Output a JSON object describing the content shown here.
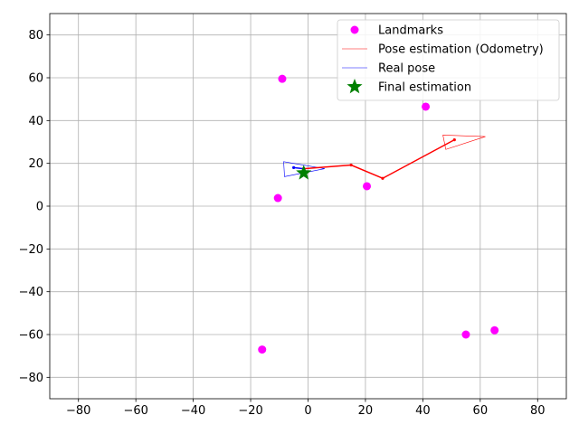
{
  "chart_data": {
    "type": "scatter",
    "xlim": [
      -90,
      90
    ],
    "ylim": [
      -90,
      90
    ],
    "xticks": [
      -80,
      -60,
      -40,
      -20,
      0,
      20,
      40,
      60,
      80
    ],
    "yticks": [
      -80,
      -60,
      -40,
      -20,
      0,
      20,
      40,
      60,
      80
    ],
    "grid": true,
    "legend_position": "top-right",
    "series": [
      {
        "name": "Landmarks",
        "kind": "scatter",
        "color": "#ff00ff",
        "points": [
          [
            -9,
            59.5
          ],
          [
            41,
            46.5
          ],
          [
            20.5,
            9.3
          ],
          [
            -10.5,
            3.8
          ],
          [
            -16,
            -67
          ],
          [
            55,
            -60
          ],
          [
            65,
            -58
          ]
        ]
      },
      {
        "name": "Pose estimation (Odometry)",
        "kind": "triangle",
        "color": "#ff0000",
        "vertices": [
          [
            47,
            33.2
          ],
          [
            61.8,
            32.5
          ],
          [
            48,
            26.5
          ]
        ]
      },
      {
        "name": "Real pose",
        "kind": "triangle",
        "color": "#0000ff",
        "vertices": [
          [
            -8.5,
            20.8
          ],
          [
            5.8,
            17.5
          ],
          [
            -8.2,
            13.8
          ]
        ]
      },
      {
        "name": "Final estimation",
        "kind": "star",
        "color": "#008000",
        "points": [
          [
            -1.5,
            15.5
          ]
        ]
      },
      {
        "kind": "path",
        "color": "#ff0000",
        "points": [
          [
            -1.5,
            17.5
          ],
          [
            15,
            19.2
          ],
          [
            26,
            13
          ],
          [
            51,
            31
          ]
        ]
      },
      {
        "kind": "path",
        "color": "#0000ff",
        "points": [
          [
            -1.5,
            17.5
          ],
          [
            -5,
            18
          ]
        ]
      }
    ]
  }
}
